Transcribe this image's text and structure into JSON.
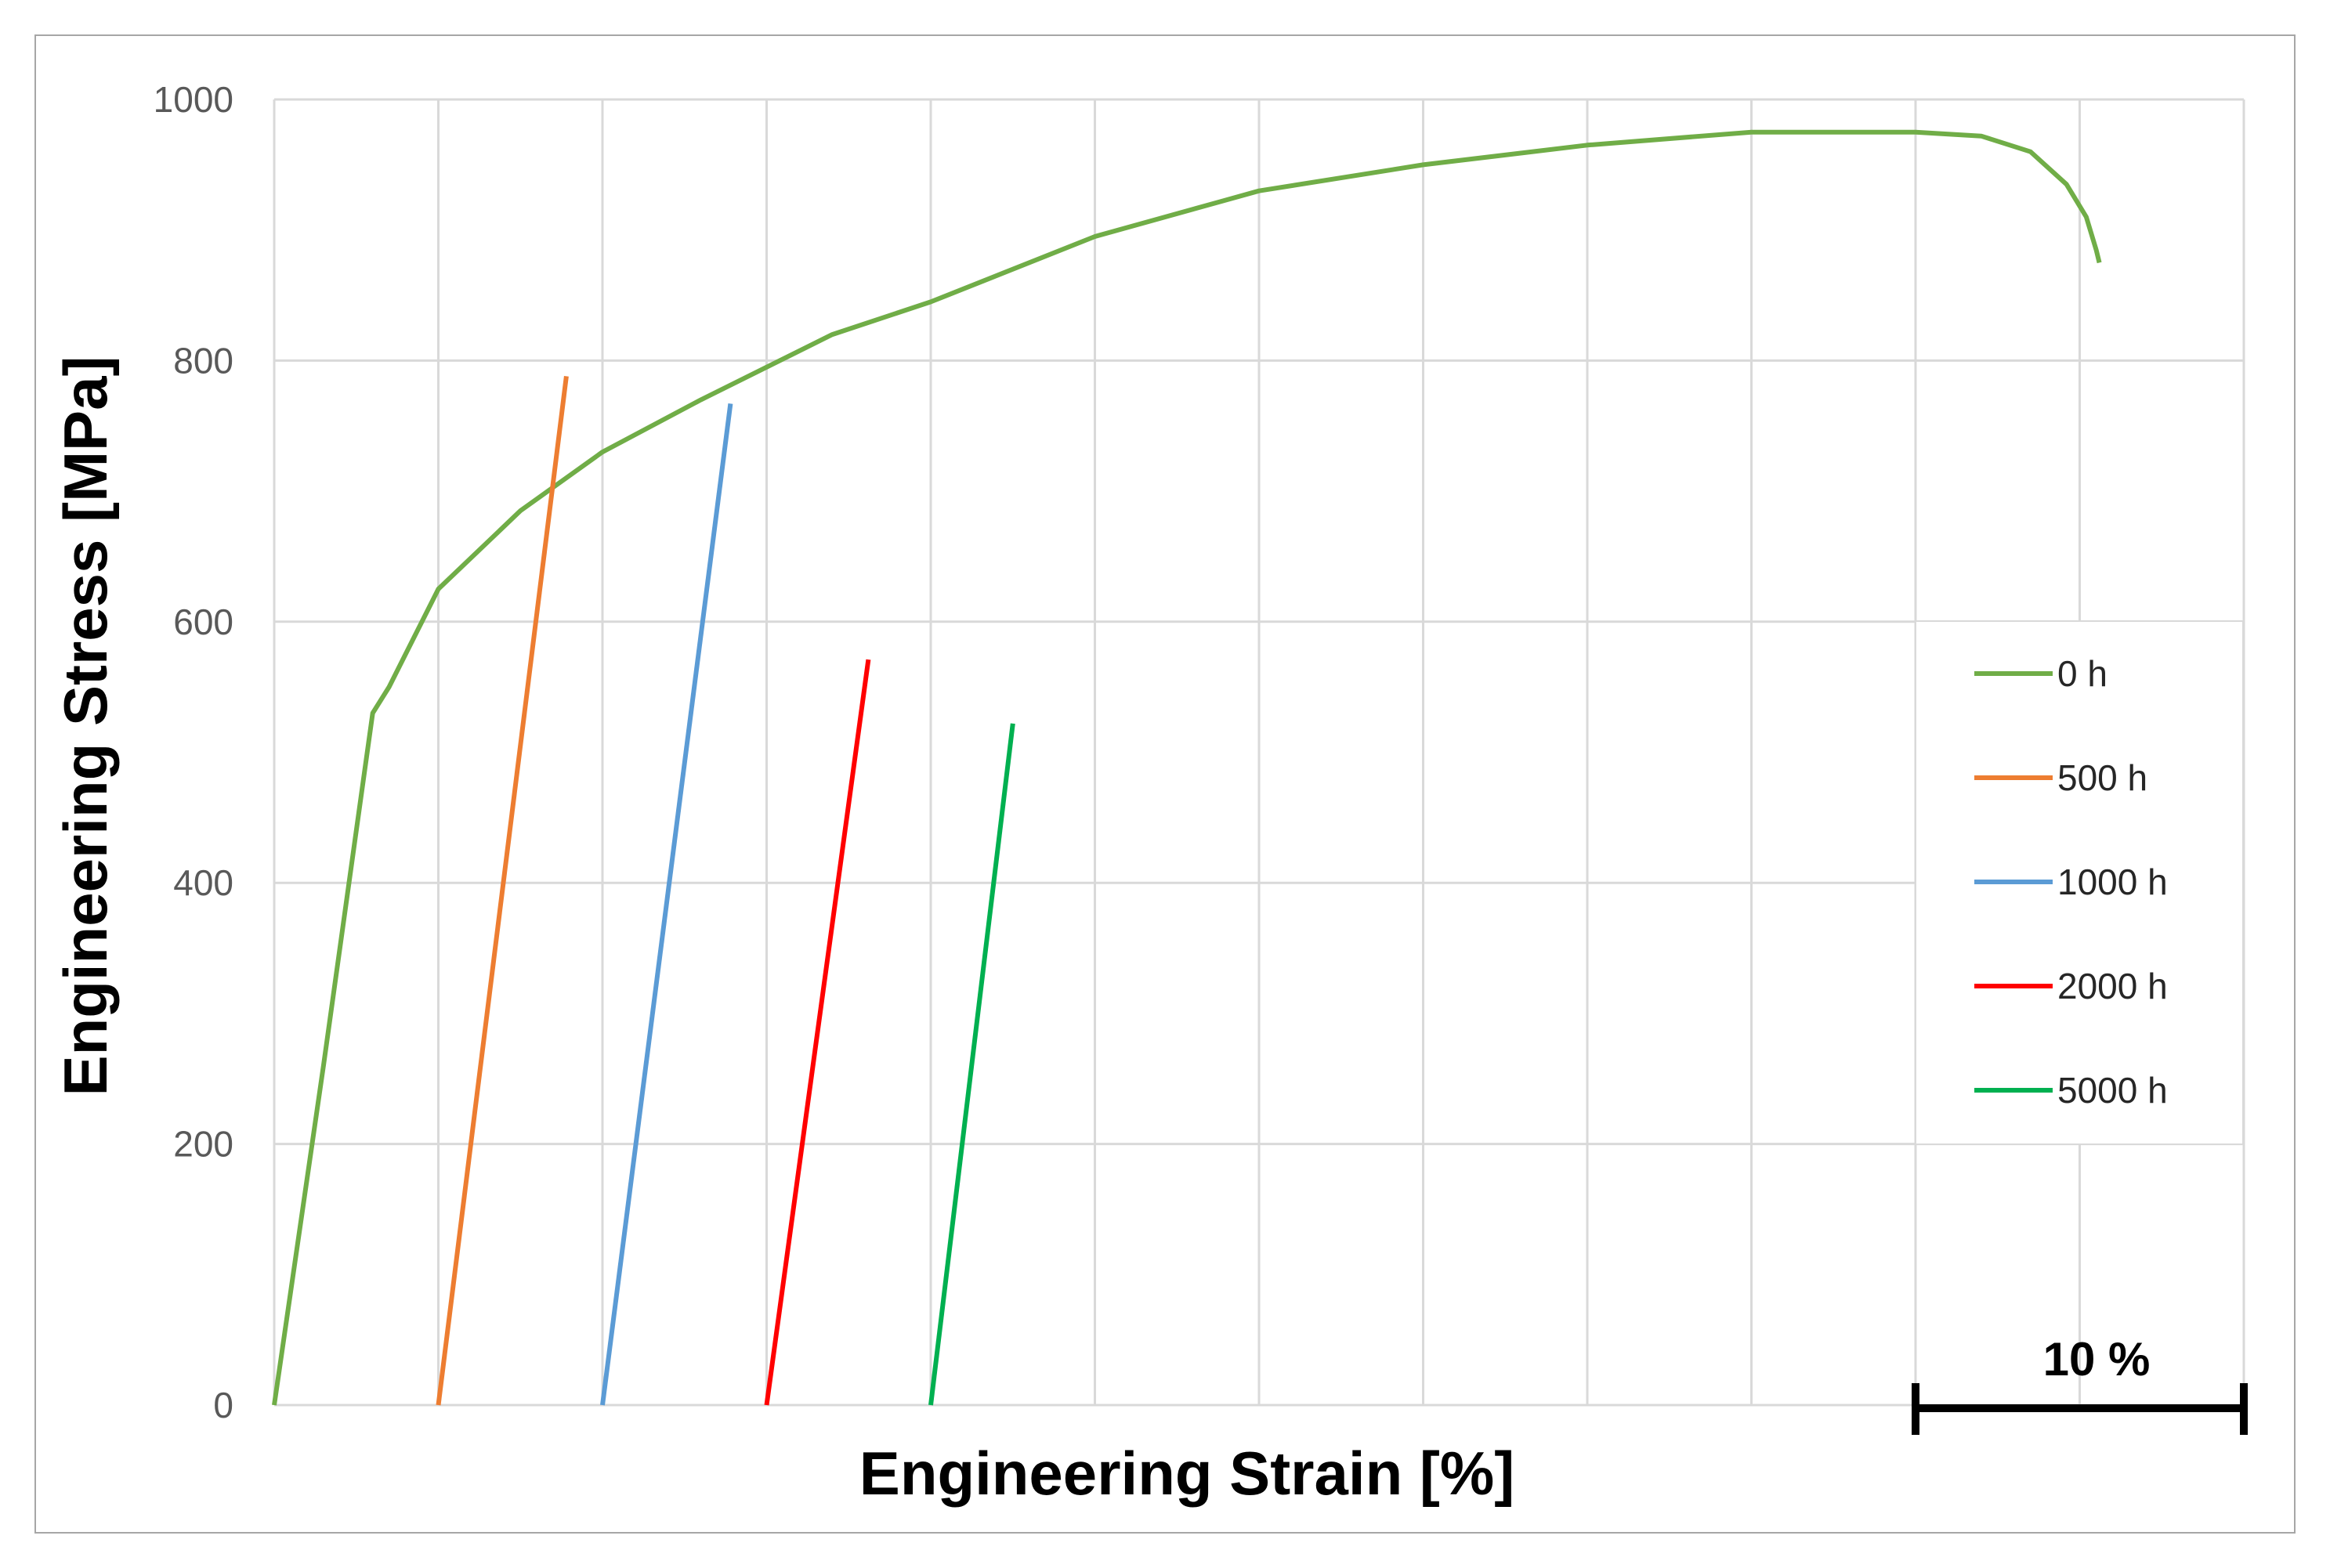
{
  "chart_data": {
    "type": "line",
    "xlabel": "Engineering Strain [%]",
    "ylabel": "Engineering Stress [MPa]",
    "ylim": [
      0,
      1000
    ],
    "yticks": [
      "0",
      "200",
      "400",
      "600",
      "800",
      "1000"
    ],
    "xlim": [
      0,
      60
    ],
    "grid": true,
    "legend_position": "right",
    "scale_bar": {
      "label": "10 %",
      "length": 10
    },
    "series": [
      {
        "name": "0 h",
        "color": "#70ad47",
        "x": [
          0,
          1.5,
          3.0,
          3.5,
          5.0,
          7.5,
          10.0,
          13.0,
          17.0,
          20.0,
          25.0,
          30.0,
          35.0,
          40.0,
          45.0,
          50.0,
          52.0,
          53.5,
          54.6,
          55.2,
          55.5,
          55.6
        ],
        "y": [
          0,
          260,
          530,
          550,
          625,
          685,
          730,
          770,
          820,
          845,
          895,
          930,
          950,
          965,
          975,
          975,
          972,
          960,
          935,
          910,
          885,
          875
        ]
      },
      {
        "name": "500 h",
        "color": "#ed7d31",
        "x": [
          5.0,
          8.9
        ],
        "y": [
          0,
          788
        ]
      },
      {
        "name": "1000 h",
        "color": "#5b9bd5",
        "x": [
          10.0,
          13.9
        ],
        "y": [
          0,
          767
        ]
      },
      {
        "name": "2000 h",
        "color": "#ff0000",
        "x": [
          15.0,
          18.1
        ],
        "y": [
          0,
          571
        ]
      },
      {
        "name": "5000 h",
        "color": "#00b050",
        "x": [
          20.0,
          22.5
        ],
        "y": [
          0,
          522
        ]
      }
    ]
  }
}
